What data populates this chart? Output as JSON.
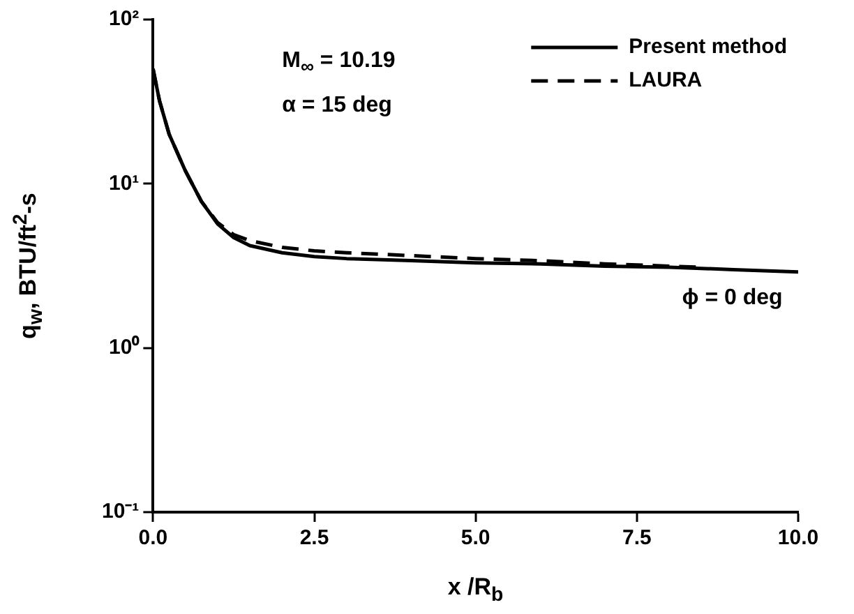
{
  "chart_data": {
    "type": "line",
    "xlabel": "x /R$_{b}$",
    "ylabel": "q$_{w}$, BTU/ft$^{2}$-s",
    "annotations": [
      "M$_{∞}$ = 10.19",
      "α = 15 deg",
      "ϕ = 0 deg"
    ],
    "series": [
      {
        "name": "Present method",
        "color": "#000000",
        "line_style": "solid",
        "x": [
          0,
          0.1,
          0.25,
          0.5,
          0.75,
          1.0,
          1.25,
          1.5,
          2.0,
          2.5,
          3.0,
          4.0,
          5.0,
          6.0,
          7.0,
          8.0,
          9.0,
          10.0
        ],
        "values": [
          50,
          32,
          20,
          12,
          7.8,
          5.7,
          4.7,
          4.2,
          3.8,
          3.6,
          3.5,
          3.4,
          3.3,
          3.25,
          3.15,
          3.1,
          3.0,
          2.9
        ]
      },
      {
        "name": "LAURA",
        "color": "#000000",
        "line_style": "dashed",
        "x": [
          0,
          0.1,
          0.25,
          0.5,
          0.75,
          1.0,
          1.25,
          1.5,
          2.0,
          2.5,
          3.0,
          4.0,
          5.0,
          6.0,
          7.0,
          8.0,
          8.5
        ],
        "values": [
          50,
          32,
          20,
          12,
          7.8,
          5.8,
          4.9,
          4.5,
          4.1,
          3.9,
          3.8,
          3.65,
          3.5,
          3.4,
          3.25,
          3.15,
          3.1
        ]
      }
    ],
    "xlim": [
      0,
      10
    ],
    "xticks": [
      {
        "value": 0,
        "label": "0.0"
      },
      {
        "value": 2.5,
        "label": "2.5"
      },
      {
        "value": 5,
        "label": "5.0"
      },
      {
        "value": 7.5,
        "label": "7.5"
      },
      {
        "value": 10,
        "label": "10.0"
      }
    ],
    "ylim": [
      0.1,
      100
    ],
    "yticks": [
      {
        "value": 0.1,
        "label": "10⁻¹"
      },
      {
        "value": 1,
        "label": "10⁰"
      },
      {
        "value": 10,
        "label": "10¹"
      },
      {
        "value": 100,
        "label": "10²"
      }
    ],
    "log": "y",
    "grid": false,
    "legend": "top right",
    "marker": "none"
  }
}
